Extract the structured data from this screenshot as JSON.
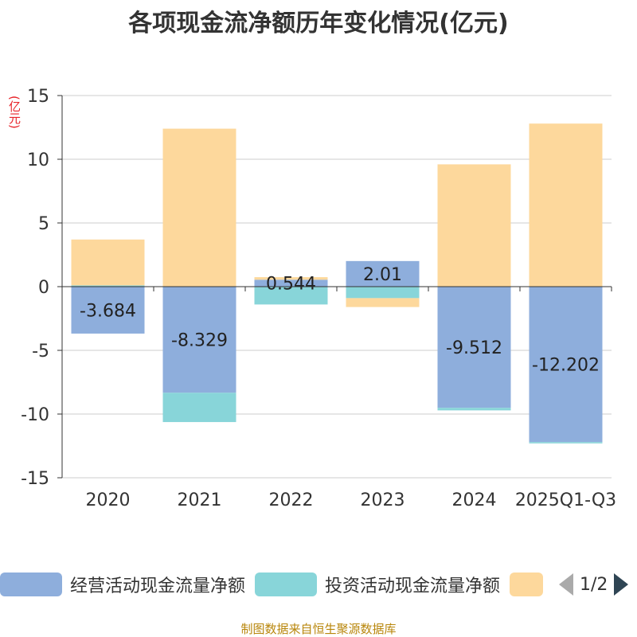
{
  "title": "各项现金流净额历年变化情况(亿元)",
  "unit_label": "(亿元)",
  "source": "制图数据来自恒生聚源数据库",
  "pager": {
    "text": "1/2"
  },
  "colors": {
    "operating": "#8eaedc",
    "investing": "#88d5d9",
    "financing": "#fdd89c",
    "unit": "#e8242a",
    "grid": "#cccccc",
    "axis": "#333333",
    "text": "#333333"
  },
  "chart_data": {
    "type": "bar",
    "stacked": true,
    "title": "各项现金流净额历年变化情况(亿元)",
    "ylabel": "(亿元)",
    "ylim": [
      -15,
      15
    ],
    "yticks": [
      15,
      10,
      5,
      0,
      -5,
      -10,
      -15
    ],
    "categories": [
      "2020",
      "2021",
      "2022",
      "2023",
      "2024",
      "2025Q1-Q3"
    ],
    "series": [
      {
        "name": "经营活动现金流量净额",
        "key": "operating",
        "values": [
          -3.684,
          -8.329,
          0.544,
          2.01,
          -9.512,
          -12.202
        ],
        "labels": [
          "-3.684",
          "-8.329",
          "0.544",
          "2.01",
          "-9.512",
          "-12.202"
        ]
      },
      {
        "name": "投资活动现金流量净额",
        "key": "investing",
        "values": [
          0.1,
          -2.3,
          -1.4,
          -0.9,
          -0.2,
          -0.1
        ]
      },
      {
        "name": "",
        "key": "financing",
        "values": [
          3.6,
          12.4,
          0.2,
          -0.7,
          9.6,
          12.8
        ]
      }
    ],
    "legend": [
      {
        "name": "经营活动现金流量净额",
        "key": "operating"
      },
      {
        "name": "投资活动现金流量净额",
        "key": "investing"
      },
      {
        "name": "",
        "key": "financing"
      }
    ]
  }
}
